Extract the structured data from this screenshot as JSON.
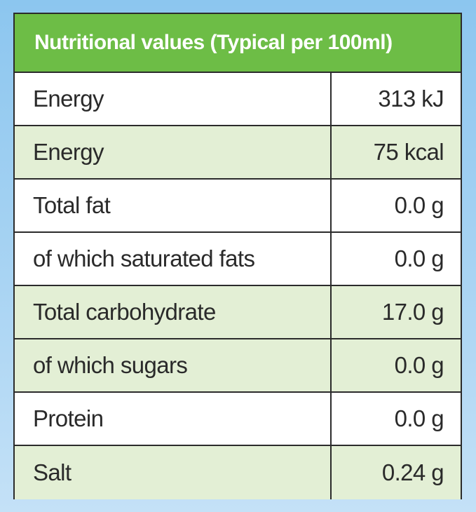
{
  "table": {
    "title": "Nutritional values (Typical per 100ml)",
    "rows": [
      {
        "label": "Energy",
        "value": "313 kJ",
        "shade": "white"
      },
      {
        "label": "Energy",
        "value": "75 kcal",
        "shade": "tint"
      },
      {
        "label": "Total fat",
        "value": "0.0 g",
        "shade": "white"
      },
      {
        "label": "of which saturated fats",
        "value": "0.0 g",
        "shade": "white"
      },
      {
        "label": "Total carbohydrate",
        "value": "17.0 g",
        "shade": "tint"
      },
      {
        "label": "of which sugars",
        "value": "0.0 g",
        "shade": "tint"
      },
      {
        "label": "Protein",
        "value": "0.0 g",
        "shade": "white"
      },
      {
        "label": "Salt",
        "value": "0.24 g",
        "shade": "tint"
      }
    ]
  },
  "colors": {
    "header_green": "#6dbd46",
    "row_tint": "#e3efd5",
    "border": "#2b2b2b",
    "background_top": "#8cc6ef",
    "background_bottom": "#c4e1f7"
  }
}
